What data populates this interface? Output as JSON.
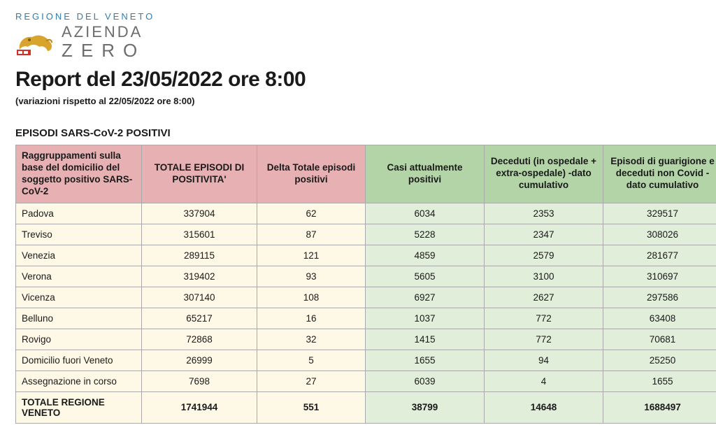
{
  "header": {
    "region_label": "REGIONE DEL VENETO",
    "logo_line1": "AZIENDA",
    "logo_line2": "ZERO"
  },
  "report": {
    "title": "Report del 23/05/2022 ore 8:00",
    "subtitle": "(variazioni rispetto al 22/05/2022 ore 8:00)",
    "section_title": "EPISODI SARS-CoV-2 POSITIVI"
  },
  "table": {
    "columns": [
      {
        "label": "Raggruppamenti sulla base del domicilio del soggetto positivo SARS-CoV-2",
        "group": "pink"
      },
      {
        "label": "TOTALE EPISODI DI POSITIVITA'",
        "group": "pink"
      },
      {
        "label": "Delta Totale episodi positivi",
        "group": "pink"
      },
      {
        "label": "Casi attualmente positivi",
        "group": "green"
      },
      {
        "label": "Deceduti (in ospedale + extra-ospedale) -dato cumulativo",
        "group": "green"
      },
      {
        "label": "Episodi di guarigione e deceduti non Covid - dato cumulativo",
        "group": "green"
      }
    ],
    "rows": [
      {
        "label": "Padova",
        "totale": "337904",
        "delta": "62",
        "positivi": "6034",
        "deceduti": "2353",
        "guariti": "329517"
      },
      {
        "label": "Treviso",
        "totale": "315601",
        "delta": "87",
        "positivi": "5228",
        "deceduti": "2347",
        "guariti": "308026"
      },
      {
        "label": "Venezia",
        "totale": "289115",
        "delta": "121",
        "positivi": "4859",
        "deceduti": "2579",
        "guariti": "281677"
      },
      {
        "label": "Verona",
        "totale": "319402",
        "delta": "93",
        "positivi": "5605",
        "deceduti": "3100",
        "guariti": "310697"
      },
      {
        "label": "Vicenza",
        "totale": "307140",
        "delta": "108",
        "positivi": "6927",
        "deceduti": "2627",
        "guariti": "297586"
      },
      {
        "label": "Belluno",
        "totale": "65217",
        "delta": "16",
        "positivi": "1037",
        "deceduti": "772",
        "guariti": "63408"
      },
      {
        "label": "Rovigo",
        "totale": "72868",
        "delta": "32",
        "positivi": "1415",
        "deceduti": "772",
        "guariti": "70681"
      },
      {
        "label": "Domicilio fuori Veneto",
        "totale": "26999",
        "delta": "5",
        "positivi": "1655",
        "deceduti": "94",
        "guariti": "25250"
      },
      {
        "label": "Assegnazione in corso",
        "totale": "7698",
        "delta": "27",
        "positivi": "6039",
        "deceduti": "4",
        "guariti": "1655"
      }
    ],
    "total_row": {
      "label": "TOTALE REGIONE VENETO",
      "totale": "1741944",
      "delta": "551",
      "positivi": "38799",
      "deceduti": "14648",
      "guariti": "1688497"
    }
  },
  "colors": {
    "pink_header": "#e7b0b2",
    "green_header": "#b2d4a7",
    "yellow_cell": "#fef9e6",
    "green_cell": "#e0eeda",
    "border": "#a9a9a9",
    "blue": "#2b7fb8"
  }
}
